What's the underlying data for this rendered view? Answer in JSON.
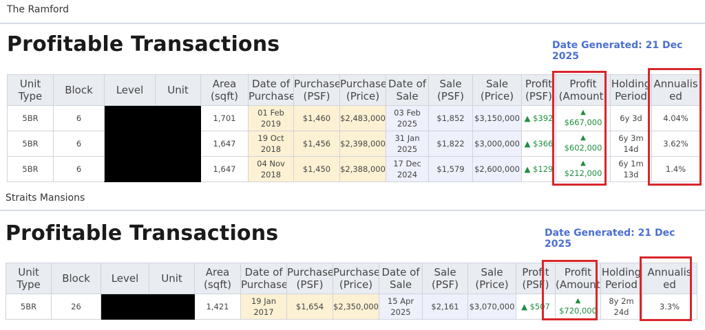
{
  "sections": [
    {
      "project": "The Ramford",
      "title": "Profitable Transactions",
      "date_generated": "Date Generated: 21 Dec 2025",
      "headers": [
        "Unit Type",
        "Block",
        "Level",
        "Unit",
        "Area (sqft)",
        "Date of Purchase",
        "Purchase (PSF)",
        "Purchase (Price)",
        "Date of Sale",
        "Sale (PSF)",
        "Sale (Price)",
        "Profit (PSF)",
        "Profit (Amount)",
        "Holding Period",
        "Annualis ed"
      ],
      "rows": [
        {
          "unit_type": "5BR",
          "block": "6",
          "area": "1,701",
          "purchase_date": "01 Feb 2019",
          "purchase_psf": "$1,460",
          "purchase_price": "$2,483,000",
          "sale_date": "03 Feb 2025",
          "sale_psf": "$1,852",
          "sale_price": "$3,150,000",
          "profit_psf": "▲ $392",
          "profit_amount": "$667,000",
          "holding": "6y 3d",
          "annualised": "4.04%"
        },
        {
          "unit_type": "5BR",
          "block": "6",
          "area": "1,647",
          "purchase_date": "19 Oct 2018",
          "purchase_psf": "$1,456",
          "purchase_price": "$2,398,000",
          "sale_date": "31 Jan 2025",
          "sale_psf": "$1,822",
          "sale_price": "$3,000,000",
          "profit_psf": "▲ $366",
          "profit_amount": "$602,000",
          "holding": "6y 3m 14d",
          "annualised": "3.62%"
        },
        {
          "unit_type": "5BR",
          "block": "6",
          "area": "1,647",
          "purchase_date": "04 Nov 2018",
          "purchase_psf": "$1,450",
          "purchase_price": "$2,388,000",
          "sale_date": "17 Dec 2024",
          "sale_psf": "$1,579",
          "sale_price": "$2,600,000",
          "profit_psf": "▲ $129",
          "profit_amount": "$212,000",
          "holding": "6y 1m 13d",
          "annualised": "1.4%"
        }
      ]
    },
    {
      "project": "Straits Mansions",
      "title": "Profitable Transactions",
      "date_generated": "Date Generated: 21 Dec 2025",
      "headers": [
        "Unit Type",
        "Block",
        "Level",
        "Unit",
        "Area (sqft)",
        "Date of Purchase",
        "Purchase (PSF)",
        "Purchase (Price)",
        "Date of Sale",
        "Sale (PSF)",
        "Sale (Price)",
        "Profit (PSF)",
        "Profit (Amount)",
        "Holding Period",
        "Annualis ed"
      ],
      "rows": [
        {
          "unit_type": "5BR",
          "block": "26",
          "area": "1,421",
          "purchase_date": "19 Jan 2017",
          "purchase_psf": "$1,654",
          "purchase_price": "$2,350,000",
          "sale_date": "15 Apr 2025",
          "sale_psf": "$2,161",
          "sale_price": "$3,070,000",
          "profit_psf": "▲ $507",
          "profit_amount": "$720,000",
          "holding": "8y 2m 24d",
          "annualised": "3.3%"
        }
      ]
    }
  ],
  "profit_arrow": "▲",
  "colors": {
    "highlight": "#d9252a",
    "profit_green": "#1e8e3e",
    "date_blue": "#4a6fd1",
    "purchase_bg": "#fdf1d4",
    "sale_bg": "#eef0fb"
  }
}
